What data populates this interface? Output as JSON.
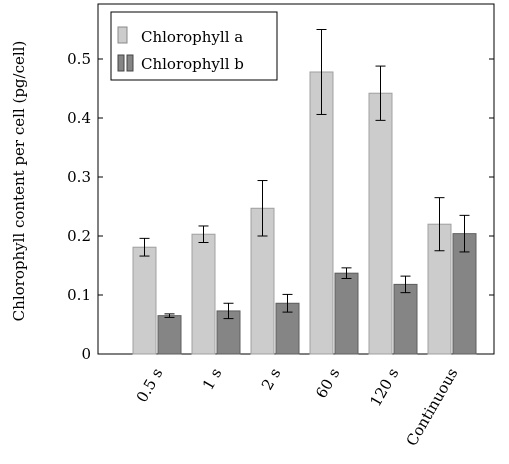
{
  "chart_data": {
    "type": "bar",
    "categories": [
      "0.5 s",
      "1 s",
      "2 s",
      "60 s",
      "120 s",
      "Continuous"
    ],
    "series": [
      {
        "name": "Chlorophyll a",
        "color": "#cccccc",
        "values": [
          0.181,
          0.203,
          0.247,
          0.478,
          0.442,
          0.22
        ],
        "errors": [
          0.015,
          0.014,
          0.047,
          0.072,
          0.046,
          0.045
        ]
      },
      {
        "name": "Chlorophyll b",
        "color": "#858585",
        "values": [
          0.065,
          0.073,
          0.086,
          0.137,
          0.118,
          0.204
        ],
        "errors": [
          0.003,
          0.013,
          0.015,
          0.009,
          0.014,
          0.031
        ]
      }
    ],
    "ylabel": "Chlorophyll content per cell (pg/cell)",
    "xlabel": "",
    "ylim": [
      0,
      0.55
    ],
    "yticks": [
      0,
      0.1,
      0.2,
      0.3,
      0.4,
      0.5
    ],
    "ytick_labels": [
      "0",
      "0.1",
      "0.2",
      "0.3",
      "0.4",
      "0.5"
    ],
    "legend_position": "top-left",
    "grid": false
  }
}
